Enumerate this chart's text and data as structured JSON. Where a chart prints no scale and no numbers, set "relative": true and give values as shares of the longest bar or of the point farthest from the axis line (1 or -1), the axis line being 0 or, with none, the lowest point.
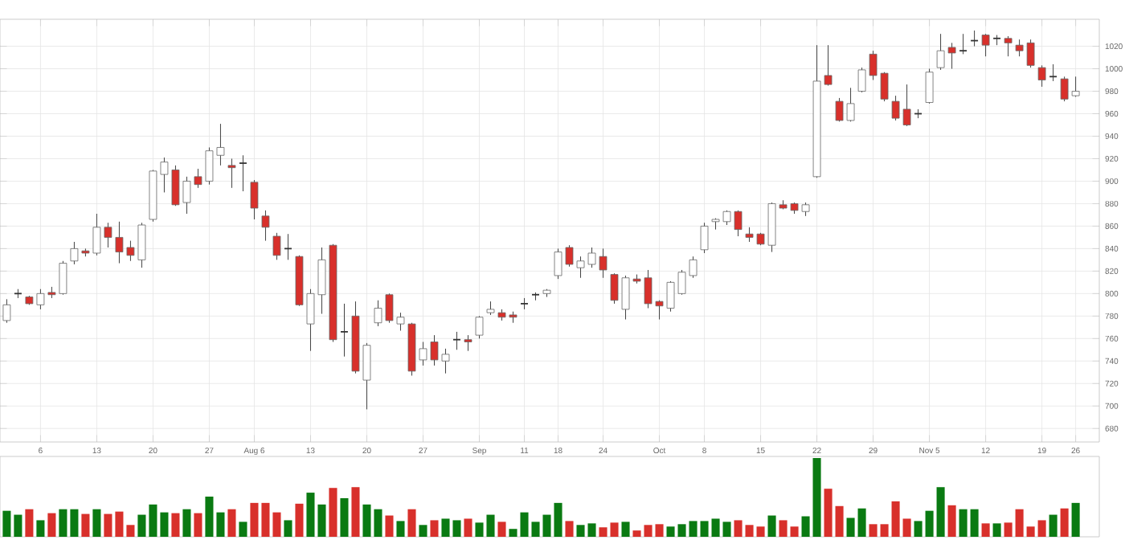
{
  "chart_data": [
    {
      "type": "candlestick",
      "grid": true,
      "categories": [
        null,
        null,
        null,
        "6",
        null,
        null,
        null,
        null,
        "13",
        null,
        null,
        null,
        null,
        "20",
        null,
        null,
        null,
        null,
        "27",
        null,
        null,
        null,
        "Aug 6",
        null,
        null,
        null,
        null,
        "13",
        null,
        null,
        null,
        null,
        "20",
        null,
        null,
        null,
        null,
        "27",
        null,
        null,
        null,
        null,
        "Sep",
        null,
        null,
        null,
        "11",
        null,
        null,
        "18",
        null,
        null,
        null,
        "24",
        null,
        null,
        null,
        null,
        "Oct",
        null,
        null,
        null,
        "8",
        null,
        null,
        null,
        null,
        "15",
        null,
        null,
        null,
        null,
        "22",
        null,
        null,
        null,
        null,
        "29",
        null,
        null,
        null,
        null,
        "Nov 5",
        null,
        null,
        null,
        null,
        "12",
        null,
        null,
        null,
        null,
        "19",
        null,
        null,
        "26"
      ],
      "ohlc": [
        [
          776,
          795,
          774,
          790
        ],
        [
          800,
          804,
          796,
          800
        ],
        [
          797,
          798,
          790,
          791
        ],
        [
          790,
          804,
          786,
          800
        ],
        [
          801,
          806,
          796,
          799
        ],
        [
          800,
          829,
          799,
          827
        ],
        [
          829,
          846,
          826,
          840
        ],
        [
          838,
          840,
          833,
          836
        ],
        [
          836,
          871,
          834,
          859
        ],
        [
          859,
          863,
          841,
          850
        ],
        [
          850,
          864,
          827,
          837
        ],
        [
          841,
          847,
          829,
          834
        ],
        [
          830,
          863,
          823,
          861
        ],
        [
          866,
          910,
          864,
          909
        ],
        [
          906,
          921,
          890,
          917
        ],
        [
          910,
          914,
          878,
          879
        ],
        [
          881,
          904,
          871,
          900
        ],
        [
          904,
          911,
          894,
          897
        ],
        [
          900,
          930,
          897,
          927
        ],
        [
          923,
          951,
          914,
          930
        ],
        [
          914,
          920,
          894,
          912
        ],
        [
          916,
          923,
          891,
          916
        ],
        [
          899,
          901,
          866,
          876
        ],
        [
          869,
          874,
          847,
          859
        ],
        [
          851,
          854,
          830,
          834
        ],
        [
          840,
          853,
          830,
          840
        ],
        [
          833,
          834,
          789,
          790
        ],
        [
          773,
          804,
          749,
          800
        ],
        [
          799,
          841,
          782,
          830
        ],
        [
          843,
          844,
          757,
          759
        ],
        [
          766,
          791,
          744,
          766
        ],
        [
          780,
          793,
          729,
          731
        ],
        [
          723,
          756,
          697,
          754
        ],
        [
          774,
          794,
          771,
          787
        ],
        [
          799,
          800,
          774,
          776
        ],
        [
          773,
          783,
          767,
          779
        ],
        [
          773,
          774,
          727,
          731
        ],
        [
          741,
          757,
          736,
          751
        ],
        [
          757,
          763,
          736,
          741
        ],
        [
          740,
          751,
          729,
          746
        ],
        [
          759,
          766,
          750,
          759
        ],
        [
          759,
          763,
          749,
          757
        ],
        [
          763,
          780,
          760,
          779
        ],
        [
          783,
          793,
          781,
          786
        ],
        [
          783,
          786,
          776,
          779
        ],
        [
          781,
          784,
          774,
          779
        ],
        [
          791,
          796,
          786,
          791
        ],
        [
          799,
          801,
          794,
          799
        ],
        [
          800,
          804,
          797,
          803
        ],
        [
          816,
          840,
          813,
          837
        ],
        [
          841,
          843,
          824,
          826
        ],
        [
          823,
          833,
          814,
          829
        ],
        [
          826,
          841,
          823,
          836
        ],
        [
          833,
          840,
          814,
          821
        ],
        [
          817,
          818,
          791,
          794
        ],
        [
          786,
          816,
          777,
          814
        ],
        [
          813,
          817,
          809,
          811
        ],
        [
          814,
          821,
          787,
          791
        ],
        [
          793,
          794,
          777,
          789
        ],
        [
          787,
          811,
          784,
          810
        ],
        [
          800,
          821,
          799,
          819
        ],
        [
          816,
          833,
          814,
          830
        ],
        [
          839,
          863,
          836,
          860
        ],
        [
          864,
          867,
          857,
          866
        ],
        [
          864,
          874,
          861,
          873
        ],
        [
          873,
          874,
          851,
          857
        ],
        [
          853,
          859,
          846,
          850
        ],
        [
          853,
          854,
          843,
          844
        ],
        [
          843,
          881,
          837,
          880
        ],
        [
          879,
          883,
          875,
          876
        ],
        [
          880,
          881,
          871,
          874
        ],
        [
          873,
          881,
          869,
          879
        ],
        [
          904,
          1021,
          903,
          989
        ],
        [
          994,
          1021,
          985,
          986
        ],
        [
          971,
          974,
          953,
          954
        ],
        [
          954,
          983,
          953,
          969
        ],
        [
          980,
          1001,
          979,
          999
        ],
        [
          1013,
          1016,
          990,
          994
        ],
        [
          996,
          997,
          971,
          973
        ],
        [
          971,
          976,
          954,
          956
        ],
        [
          964,
          986,
          949,
          950
        ],
        [
          960,
          964,
          956,
          960
        ],
        [
          970,
          1000,
          969,
          997
        ],
        [
          1001,
          1031,
          999,
          1016
        ],
        [
          1019,
          1023,
          1000,
          1014
        ],
        [
          1016,
          1031,
          1013,
          1016
        ],
        [
          1025,
          1034,
          1020,
          1025
        ],
        [
          1030,
          1031,
          1011,
          1021
        ],
        [
          1027,
          1030,
          1021,
          1027
        ],
        [
          1027,
          1029,
          1011,
          1023
        ],
        [
          1021,
          1026,
          1011,
          1016
        ],
        [
          1023,
          1026,
          1001,
          1003
        ],
        [
          1001,
          1003,
          984,
          990
        ],
        [
          993,
          1004,
          989,
          993
        ],
        [
          991,
          993,
          971,
          973
        ],
        [
          976,
          993,
          975,
          980
        ]
      ],
      "colors": [
        "#ffffff",
        "#333333",
        "#d8302b",
        "#ffffff",
        "#d8302b",
        "#ffffff",
        "#ffffff",
        "#d8302b",
        "#ffffff",
        "#d8302b",
        "#d8302b",
        "#d8302b",
        "#ffffff",
        "#ffffff",
        "#ffffff",
        "#d8302b",
        "#ffffff",
        "#d8302b",
        "#ffffff",
        "#ffffff",
        "#d8302b",
        "#333333",
        "#d8302b",
        "#d8302b",
        "#d8302b",
        "#333333",
        "#d8302b",
        "#ffffff",
        "#ffffff",
        "#d8302b",
        "#333333",
        "#d8302b",
        "#ffffff",
        "#ffffff",
        "#d8302b",
        "#ffffff",
        "#d8302b",
        "#ffffff",
        "#d8302b",
        "#ffffff",
        "#333333",
        "#d8302b",
        "#ffffff",
        "#ffffff",
        "#d8302b",
        "#d8302b",
        "#333333",
        "#333333",
        "#ffffff",
        "#ffffff",
        "#d8302b",
        "#ffffff",
        "#ffffff",
        "#d8302b",
        "#d8302b",
        "#ffffff",
        "#d8302b",
        "#d8302b",
        "#d8302b",
        "#ffffff",
        "#ffffff",
        "#ffffff",
        "#ffffff",
        "#ffffff",
        "#ffffff",
        "#d8302b",
        "#d8302b",
        "#d8302b",
        "#ffffff",
        "#d8302b",
        "#d8302b",
        "#ffffff",
        "#ffffff",
        "#d8302b",
        "#d8302b",
        "#ffffff",
        "#ffffff",
        "#d8302b",
        "#d8302b",
        "#d8302b",
        "#d8302b",
        "#333333",
        "#ffffff",
        "#ffffff",
        "#d8302b",
        "#333333",
        "#333333",
        "#d8302b",
        "#333333",
        "#d8302b",
        "#d8302b",
        "#d8302b",
        "#d8302b",
        "#333333",
        "#d8302b",
        "#ffffff"
      ],
      "ylim": [
        668,
        1044
      ],
      "yticks": [
        680,
        700,
        720,
        740,
        760,
        780,
        800,
        820,
        840,
        860,
        880,
        900,
        920,
        940,
        960,
        980,
        1000,
        1020
      ]
    },
    {
      "type": "bar",
      "relative": true,
      "categories": [
        null,
        null,
        null,
        null,
        null,
        null,
        null,
        null,
        null,
        null,
        null,
        null,
        null,
        null,
        null,
        null,
        null,
        null,
        null,
        null,
        null,
        null,
        null,
        null,
        null,
        null,
        null,
        null,
        null,
        null,
        null,
        null,
        null,
        null,
        null,
        null,
        null,
        null,
        null,
        null,
        null,
        null,
        null,
        null,
        null,
        null,
        null,
        null,
        null,
        null,
        null,
        null,
        null,
        null,
        null,
        null,
        null,
        null,
        null,
        null,
        null,
        null,
        null,
        null,
        null,
        null,
        null,
        null,
        null,
        null,
        null,
        null,
        null,
        null,
        null,
        null,
        null,
        null,
        null,
        null,
        null,
        null,
        null,
        null,
        null,
        null,
        null,
        null,
        null,
        null,
        null,
        null,
        null,
        null,
        null,
        null
      ],
      "values": [
        0.33,
        0.28,
        0.35,
        0.21,
        0.3,
        0.35,
        0.35,
        0.29,
        0.35,
        0.29,
        0.32,
        0.15,
        0.28,
        0.41,
        0.31,
        0.3,
        0.35,
        0.3,
        0.51,
        0.31,
        0.35,
        0.19,
        0.43,
        0.43,
        0.31,
        0.21,
        0.42,
        0.56,
        0.41,
        0.62,
        0.49,
        0.63,
        0.41,
        0.35,
        0.27,
        0.2,
        0.35,
        0.15,
        0.21,
        0.23,
        0.21,
        0.23,
        0.18,
        0.28,
        0.19,
        0.1,
        0.31,
        0.19,
        0.28,
        0.43,
        0.2,
        0.15,
        0.17,
        0.12,
        0.18,
        0.19,
        0.08,
        0.15,
        0.16,
        0.13,
        0.16,
        0.2,
        0.2,
        0.23,
        0.19,
        0.21,
        0.15,
        0.13,
        0.27,
        0.21,
        0.13,
        0.26,
        1,
        0.61,
        0.39,
        0.24,
        0.36,
        0.16,
        0.16,
        0.45,
        0.23,
        0.2,
        0.33,
        0.63,
        0.4,
        0.35,
        0.35,
        0.17,
        0.17,
        0.18,
        0.35,
        0.13,
        0.21,
        0.28,
        0.36,
        0.43
      ],
      "colors": [
        "#0a7a12",
        "#0a7a12",
        "#d8302b",
        "#0a7a12",
        "#d8302b",
        "#0a7a12",
        "#0a7a12",
        "#d8302b",
        "#0a7a12",
        "#d8302b",
        "#d8302b",
        "#d8302b",
        "#0a7a12",
        "#0a7a12",
        "#0a7a12",
        "#d8302b",
        "#0a7a12",
        "#d8302b",
        "#0a7a12",
        "#0a7a12",
        "#d8302b",
        "#0a7a12",
        "#d8302b",
        "#d8302b",
        "#d8302b",
        "#0a7a12",
        "#d8302b",
        "#0a7a12",
        "#0a7a12",
        "#d8302b",
        "#0a7a12",
        "#d8302b",
        "#0a7a12",
        "#0a7a12",
        "#d8302b",
        "#0a7a12",
        "#d8302b",
        "#0a7a12",
        "#d8302b",
        "#0a7a12",
        "#0a7a12",
        "#d8302b",
        "#0a7a12",
        "#0a7a12",
        "#d8302b",
        "#0a7a12",
        "#0a7a12",
        "#0a7a12",
        "#0a7a12",
        "#0a7a12",
        "#d8302b",
        "#0a7a12",
        "#0a7a12",
        "#d8302b",
        "#d8302b",
        "#0a7a12",
        "#d8302b",
        "#d8302b",
        "#d8302b",
        "#0a7a12",
        "#0a7a12",
        "#0a7a12",
        "#0a7a12",
        "#0a7a12",
        "#0a7a12",
        "#d8302b",
        "#d8302b",
        "#d8302b",
        "#0a7a12",
        "#d8302b",
        "#d8302b",
        "#0a7a12",
        "#0a7a12",
        "#d8302b",
        "#d8302b",
        "#0a7a12",
        "#0a7a12",
        "#d8302b",
        "#d8302b",
        "#d8302b",
        "#d8302b",
        "#0a7a12",
        "#0a7a12",
        "#0a7a12",
        "#d8302b",
        "#0a7a12",
        "#0a7a12",
        "#d8302b",
        "#0a7a12",
        "#d8302b",
        "#d8302b",
        "#d8302b",
        "#d8302b",
        "#0a7a12",
        "#d8302b",
        "#0a7a12"
      ]
    }
  ]
}
